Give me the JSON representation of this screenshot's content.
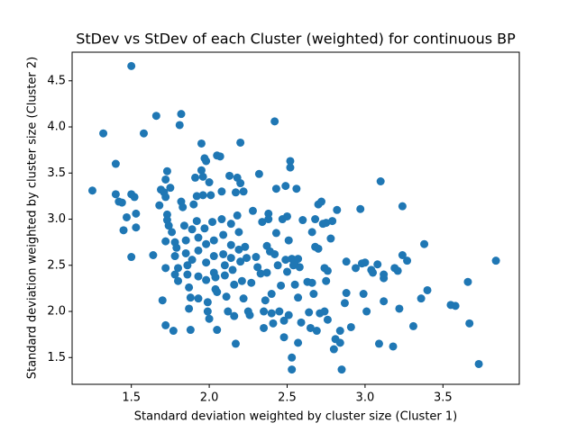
{
  "chart_data": {
    "type": "scatter",
    "title": "StDev vs StDev of each Cluster (weighted) for continuous BP",
    "x_label": "Standard deviation weighted by cluster size (Cluster 1)",
    "y_label": "Standard deviation weighted by cluster size (Cluster 2)",
    "color": "#1f77b4",
    "xlim": [
      1.12,
      3.99
    ],
    "ylim": [
      1.21,
      4.81
    ],
    "xticks": [
      1.5,
      {
        "value": 2,
        "label": "2.0"
      },
      2.5,
      {
        "value": 3,
        "label": "3.0"
      },
      3.5
    ],
    "yticks": [
      1.5,
      {
        "value": 2,
        "label": "2.0"
      },
      2.5,
      {
        "value": 3,
        "label": "3.0"
      },
      3.5,
      {
        "value": 4,
        "label": "4.0"
      },
      4.5
    ],
    "x": [
      1.25,
      1.32,
      1.4,
      1.4,
      1.42,
      1.44,
      1.45,
      1.47,
      1.5,
      1.5,
      1.52,
      1.53,
      1.53,
      1.5,
      1.58,
      1.64,
      1.66,
      1.68,
      1.69,
      1.7,
      1.71,
      1.72,
      1.72,
      1.73,
      1.73,
      1.73,
      1.72,
      1.72,
      1.72,
      1.74,
      1.75,
      1.76,
      1.77,
      1.78,
      1.78,
      1.78,
      1.79,
      1.8,
      1.8,
      1.81,
      1.82,
      1.82,
      1.83,
      1.84,
      1.85,
      1.85,
      1.86,
      1.86,
      1.87,
      1.87,
      1.88,
      1.88,
      1.89,
      1.89,
      1.9,
      1.91,
      1.92,
      1.92,
      1.93,
      1.93,
      1.93,
      1.93,
      1.95,
      1.95,
      1.96,
      1.96,
      1.97,
      1.98,
      1.97,
      1.98,
      1.98,
      1.98,
      1.99,
      1.99,
      2.0,
      2.0,
      2.01,
      2.02,
      2.03,
      2.03,
      2.03,
      2.04,
      2.04,
      2.05,
      2.05,
      2.05,
      2.07,
      2.08,
      2.08,
      2.09,
      2.09,
      2.1,
      2.1,
      2.11,
      2.12,
      2.13,
      2.14,
      2.14,
      2.14,
      2.15,
      2.16,
      2.16,
      2.17,
      2.17,
      2.18,
      2.18,
      2.19,
      2.19,
      2.2,
      2.2,
      2.2,
      2.21,
      2.22,
      2.22,
      2.23,
      2.24,
      2.25,
      2.26,
      2.27,
      2.28,
      2.3,
      2.31,
      2.32,
      2.33,
      2.34,
      2.35,
      2.35,
      2.36,
      2.37,
      2.37,
      2.38,
      2.38,
      2.39,
      2.4,
      2.4,
      2.41,
      2.42,
      2.42,
      2.43,
      2.43,
      2.44,
      2.45,
      2.46,
      2.47,
      2.48,
      2.48,
      2.49,
      2.49,
      2.5,
      2.5,
      2.51,
      2.51,
      2.52,
      2.52,
      2.53,
      2.53,
      2.53,
      2.54,
      2.55,
      2.55,
      2.56,
      2.57,
      2.57,
      2.57,
      2.58,
      2.59,
      2.6,
      2.63,
      2.64,
      2.65,
      2.66,
      2.66,
      2.67,
      2.68,
      2.68,
      2.69,
      2.7,
      2.7,
      2.71,
      2.72,
      2.73,
      2.74,
      2.74,
      2.75,
      2.75,
      2.76,
      2.76,
      2.78,
      2.79,
      2.8,
      2.81,
      2.82,
      2.84,
      2.84,
      2.85,
      2.87,
      2.88,
      2.88,
      2.91,
      2.94,
      2.97,
      2.98,
      2.99,
      3.0,
      3.01,
      3.04,
      3.05,
      3.08,
      3.09,
      3.1,
      3.12,
      3.12,
      3.12,
      3.18,
      3.19,
      3.21,
      3.22,
      3.24,
      3.24,
      3.27,
      3.31,
      3.36,
      3.38,
      3.4,
      3.55,
      3.58,
      3.66,
      3.67,
      3.73,
      3.84
    ],
    "values": [
      3.31,
      3.93,
      3.6,
      3.27,
      3.19,
      3.18,
      2.88,
      3.02,
      3.27,
      2.59,
      3.24,
      3.06,
      2.91,
      4.66,
      3.93,
      2.61,
      4.12,
      3.15,
      3.32,
      2.12,
      3.29,
      3.24,
      3.43,
      3.52,
      3.05,
      2.99,
      2.76,
      2.47,
      1.85,
      2.93,
      3.34,
      2.86,
      1.79,
      2.75,
      2.6,
      2.4,
      2.69,
      2.47,
      2.33,
      4.02,
      4.14,
      3.19,
      3.13,
      2.93,
      2.77,
      2.63,
      2.5,
      2.4,
      2.26,
      2.03,
      2.15,
      1.8,
      2.89,
      2.56,
      3.16,
      3.45,
      3.25,
      2.98,
      2.8,
      2.66,
      2.38,
      2.14,
      3.82,
      3.53,
      3.46,
      3.26,
      3.66,
      3.63,
      2.9,
      2.73,
      2.53,
      2.34,
      2.1,
      2.0,
      1.92,
      3.4,
      3.26,
      2.97,
      2.77,
      2.6,
      2.42,
      2.37,
      2.24,
      2.21,
      1.8,
      3.69,
      3.68,
      3.3,
      3.0,
      2.83,
      2.62,
      2.5,
      2.39,
      2.16,
      2.0,
      3.47,
      2.95,
      2.72,
      2.58,
      2.45,
      2.29,
      1.95,
      1.65,
      3.29,
      3.45,
      3.04,
      2.86,
      2.67,
      2.54,
      3.83,
      3.39,
      2.33,
      2.14,
      3.3,
      2.7,
      2.58,
      2.0,
      1.96,
      2.31,
      3.09,
      2.59,
      2.48,
      3.49,
      2.41,
      2.97,
      1.82,
      2.0,
      2.12,
      2.71,
      2.42,
      3.06,
      3.0,
      2.65,
      2.19,
      1.98,
      1.87,
      4.06,
      2.62,
      2.85,
      3.33,
      2.5,
      2.0,
      2.28,
      3.0,
      1.9,
      1.72,
      3.36,
      2.56,
      2.43,
      3.03,
      2.77,
      1.96,
      3.63,
      3.56,
      2.57,
      1.5,
      1.37,
      2.5,
      2.29,
      2.54,
      3.33,
      2.57,
      2.15,
      1.66,
      2.48,
      1.88,
      2.99,
      2.32,
      1.99,
      1.82,
      2.86,
      2.31,
      2.19,
      2.7,
      3.0,
      1.79,
      3.16,
      2.68,
      1.98,
      3.19,
      2.95,
      2.47,
      2.0,
      2.96,
      2.33,
      1.91,
      2.44,
      2.79,
      2.98,
      1.59,
      1.7,
      3.1,
      1.79,
      1.66,
      1.37,
      2.09,
      2.2,
      2.54,
      1.83,
      2.47,
      3.11,
      2.52,
      2.19,
      2.53,
      2.0,
      2.45,
      2.42,
      2.51,
      1.65,
      3.41,
      2.11,
      2.36,
      2.4,
      1.62,
      2.47,
      2.44,
      2.03,
      3.14,
      2.61,
      2.55,
      1.84,
      2.14,
      2.73,
      2.23,
      2.07,
      2.06,
      2.32,
      1.87,
      1.43,
      2.55
    ]
  }
}
